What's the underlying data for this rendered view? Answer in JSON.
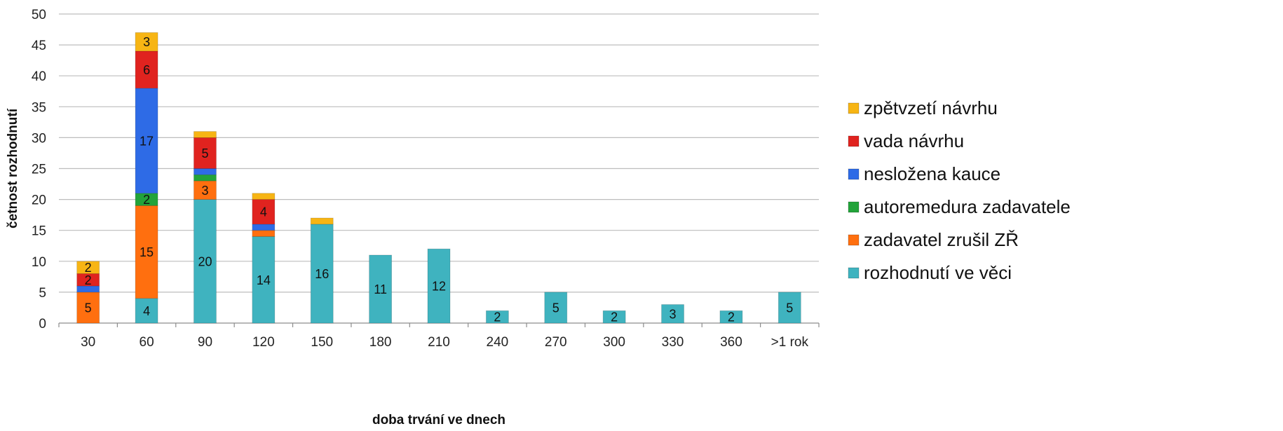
{
  "chart_data": {
    "type": "bar",
    "stacked": true,
    "xlabel": "doba trvání ve dnech",
    "ylabel": "četnost rozhodnutí",
    "ylim": [
      0,
      50
    ],
    "yticks": [
      0,
      5,
      10,
      15,
      20,
      25,
      30,
      35,
      40,
      45,
      50
    ],
    "grid": true,
    "legend_position": "right",
    "categories": [
      "30",
      "60",
      "90",
      "120",
      "150",
      "180",
      "210",
      "240",
      "270",
      "300",
      "330",
      "360",
      ">1 rok"
    ],
    "series": [
      {
        "name": "rozhodnutí ve věci",
        "color": "#3FB3BF",
        "values": [
          0,
          4,
          20,
          14,
          16,
          11,
          12,
          2,
          5,
          2,
          3,
          2,
          5
        ],
        "labels": [
          null,
          "4",
          "20",
          "14",
          "16",
          "11",
          "12",
          "2",
          "5",
          "2",
          "3",
          "2",
          "5"
        ]
      },
      {
        "name": "zadavatel zrušil ZŘ",
        "color": "#FF6F0F",
        "values": [
          5,
          15,
          3,
          1,
          0,
          0,
          0,
          0,
          0,
          0,
          0,
          0,
          0
        ],
        "labels": [
          "5",
          "15",
          "3",
          null,
          null,
          null,
          null,
          null,
          null,
          null,
          null,
          null,
          null
        ]
      },
      {
        "name": "autoremedura zadavatele",
        "color": "#22A33A",
        "values": [
          0,
          2,
          1,
          0,
          0,
          0,
          0,
          0,
          0,
          0,
          0,
          0,
          0
        ],
        "labels": [
          null,
          "2",
          null,
          null,
          null,
          null,
          null,
          null,
          null,
          null,
          null,
          null,
          null
        ]
      },
      {
        "name": "nesložena kauce",
        "color": "#2E6BE6",
        "values": [
          1,
          17,
          1,
          1,
          0,
          0,
          0,
          0,
          0,
          0,
          0,
          0,
          0
        ],
        "labels": [
          null,
          "17",
          null,
          null,
          null,
          null,
          null,
          null,
          null,
          null,
          null,
          null,
          null
        ]
      },
      {
        "name": "vada návrhu",
        "color": "#E0231F",
        "values": [
          2,
          6,
          5,
          4,
          0,
          0,
          0,
          0,
          0,
          0,
          0,
          0,
          0
        ],
        "labels": [
          "2",
          "6",
          "5",
          "4",
          null,
          null,
          null,
          null,
          null,
          null,
          null,
          null,
          null
        ]
      },
      {
        "name": "zpětvzetí návrhu",
        "color": "#F7B514",
        "values": [
          2,
          3,
          1,
          1,
          1,
          0,
          0,
          0,
          0,
          0,
          0,
          0,
          0
        ],
        "labels": [
          "2",
          "3",
          null,
          null,
          null,
          null,
          null,
          null,
          null,
          null,
          null,
          null,
          null
        ]
      }
    ],
    "legend_order": [
      "zpětvzetí návrhu",
      "vada návrhu",
      "nesložena kauce",
      "autoremedura zadavatele",
      "zadavatel zrušil ZŘ",
      "rozhodnutí ve věci"
    ]
  }
}
